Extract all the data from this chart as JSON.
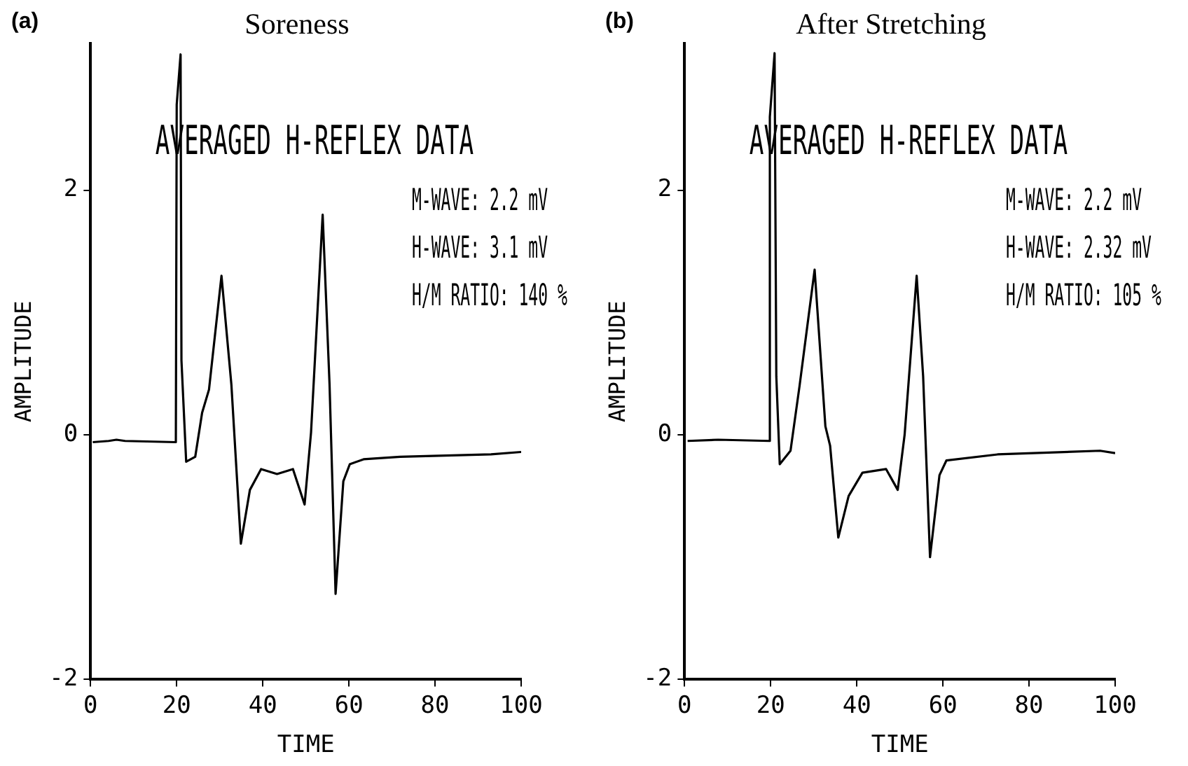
{
  "chart_data": [
    {
      "type": "line",
      "title": "Soreness",
      "subtitle": "AVERAGED H-REFLEX DATA",
      "xlabel": "TIME",
      "ylabel": "AMPLITUDE",
      "annotations": [
        "(a)",
        "M-WAVE: 2.2 mV",
        "H-WAVE: 3.1 mV",
        "H/M RATIO: 140 %"
      ],
      "xlim": [
        0,
        100
      ],
      "xticks": [
        0,
        20,
        40,
        60,
        80,
        100
      ],
      "ylim": [
        -2,
        3.2
      ],
      "yticks": [
        -2,
        0,
        2
      ],
      "grid": false,
      "legend": false,
      "marker": "none",
      "line_style": "solid",
      "series": [
        {
          "color": "#000000",
          "x": [
            0.5,
            4.2,
            6,
            8,
            19.8,
            20,
            20.9,
            21.1,
            22.2,
            24.3,
            25.9,
            27.5,
            30.4,
            32.7,
            34.9,
            37,
            39.6,
            43.3,
            47,
            49.7,
            51.2,
            53.9,
            55.5,
            56.9,
            58.7,
            60.2,
            63.4,
            71.9,
            93,
            100
          ],
          "values": [
            -0.06,
            -0.05,
            -0.04,
            -0.05,
            -0.06,
            2.7,
            3.11,
            0.61,
            -0.22,
            -0.18,
            0.18,
            0.37,
            1.3,
            0.41,
            -0.89,
            -0.45,
            -0.28,
            -0.32,
            -0.28,
            -0.57,
            0.02,
            1.8,
            0.41,
            -1.3,
            -0.38,
            -0.24,
            -0.2,
            -0.18,
            -0.16,
            -0.14
          ]
        }
      ]
    },
    {
      "type": "line",
      "title": "After Stretching",
      "subtitle": "AVERAGED H-REFLEX DATA",
      "xlabel": "TIME",
      "ylabel": "AMPLITUDE",
      "annotations": [
        "(b)",
        "M-WAVE: 2.2 mV",
        "H-WAVE: 2.32 mV",
        "H/M RATIO: 105 %"
      ],
      "xlim": [
        0,
        100
      ],
      "xticks": [
        0,
        20,
        40,
        60,
        80,
        100
      ],
      "ylim": [
        -2,
        3.2
      ],
      "yticks": [
        -2,
        0,
        2
      ],
      "grid": false,
      "legend": false,
      "marker": "none",
      "line_style": "solid",
      "series": [
        {
          "color": "#000000",
          "x": [
            0.7,
            7.8,
            19.7,
            19.8,
            20.9,
            21.3,
            22.1,
            24.6,
            26.7,
            30.2,
            32.7,
            33.8,
            35.7,
            38.1,
            41.3,
            46.8,
            49.5,
            51.1,
            53.9,
            55.4,
            57,
            59.2,
            60.8,
            72.7,
            96.5,
            100
          ],
          "values": [
            -0.05,
            -0.04,
            -0.05,
            2.6,
            3.12,
            0.48,
            -0.24,
            -0.13,
            0.4,
            1.35,
            0.07,
            -0.09,
            -0.84,
            -0.5,
            -0.31,
            -0.28,
            -0.45,
            0,
            1.3,
            0.48,
            -1,
            -0.33,
            -0.21,
            -0.16,
            -0.13,
            -0.15
          ]
        }
      ]
    }
  ]
}
